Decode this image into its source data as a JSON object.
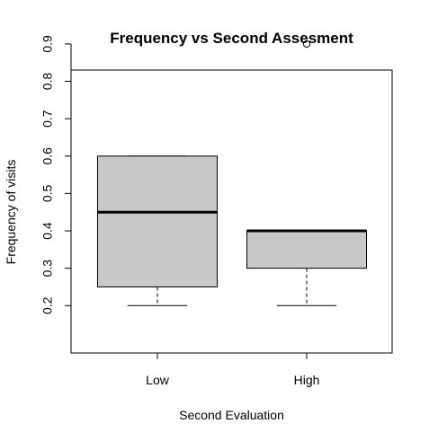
{
  "chart_data": {
    "type": "box",
    "title": "Frequency vs Second Assesment",
    "xlabel": "Second Evaluation",
    "ylabel": "Frequency of visits",
    "categories": [
      "Low",
      "High"
    ],
    "yticks": [
      "0.2",
      "0.3",
      "0.4",
      "0.5",
      "0.6",
      "0.7",
      "0.8",
      "0.9"
    ],
    "ylim": [
      0.17,
      0.92
    ],
    "grid": false,
    "legend": "none",
    "boxes": [
      {
        "category": "Low",
        "whisker_low": 0.2,
        "q1": 0.25,
        "median": 0.45,
        "q3": 0.6,
        "whisker_high": 0.6,
        "outliers": []
      },
      {
        "category": "High",
        "whisker_low": 0.2,
        "q1": 0.3,
        "median": 0.4,
        "q3": 0.4,
        "whisker_high": 0.4,
        "outliers": [
          0.9
        ]
      }
    ],
    "colors": {
      "box_fill": "#c8c8c8",
      "stroke": "#000000"
    }
  }
}
